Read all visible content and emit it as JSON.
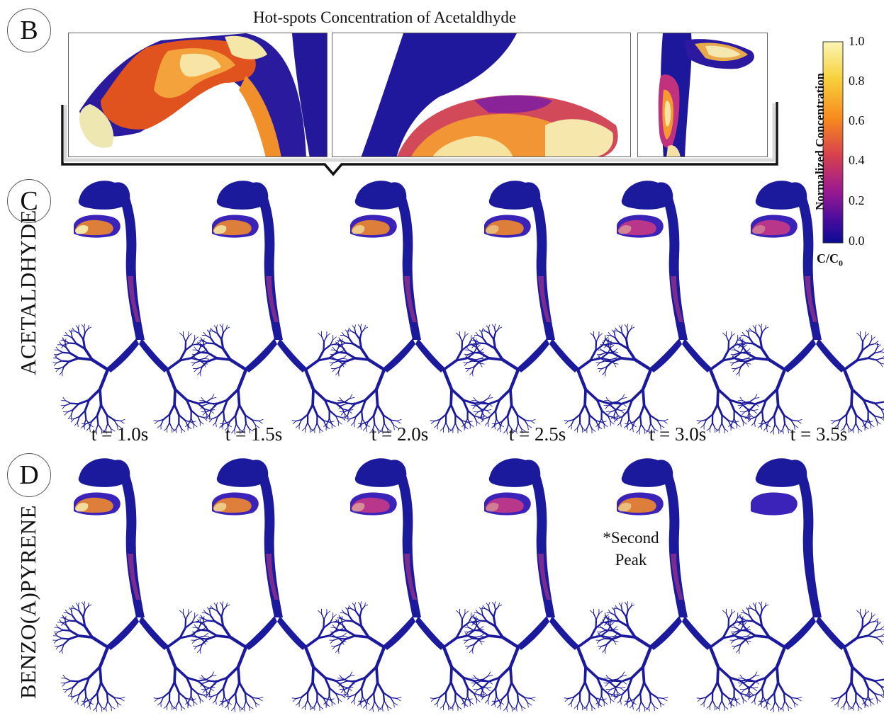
{
  "title": "Hot-spots Concentration of Acetaldhyde",
  "panels": {
    "b": "B",
    "c": "C",
    "d": "D"
  },
  "row_labels": {
    "acetaldehyde": "ACETALDHYDE",
    "benzopyrene": "BENZO(A)PYRENE"
  },
  "time_labels": [
    "t = 1.0s",
    "t = 1.5s",
    "t = 2.0s",
    "t = 2.5s",
    "t = 3.0s",
    "t = 3.5s"
  ],
  "annotation": {
    "line1": "*Second",
    "line2": "Peak"
  },
  "colorbar": {
    "title": "Normalized Concentration",
    "unit_main": "C/C",
    "unit_sub": "0",
    "ticks": [
      "1.0",
      "0.8",
      "0.6",
      "0.4",
      "0.2",
      "0.0"
    ],
    "colors": [
      "#fbf5b5",
      "#f7d13d",
      "#f78b1e",
      "#d8424d",
      "#9b1a8f",
      "#4b0c9c",
      "#0b0b94"
    ]
  },
  "airway_colors": {
    "base": "#1c1a9c",
    "mid": "#3b22b8",
    "warm": "#c83a86",
    "hot": "#f08a2c",
    "peak": "#f4e7a8"
  }
}
